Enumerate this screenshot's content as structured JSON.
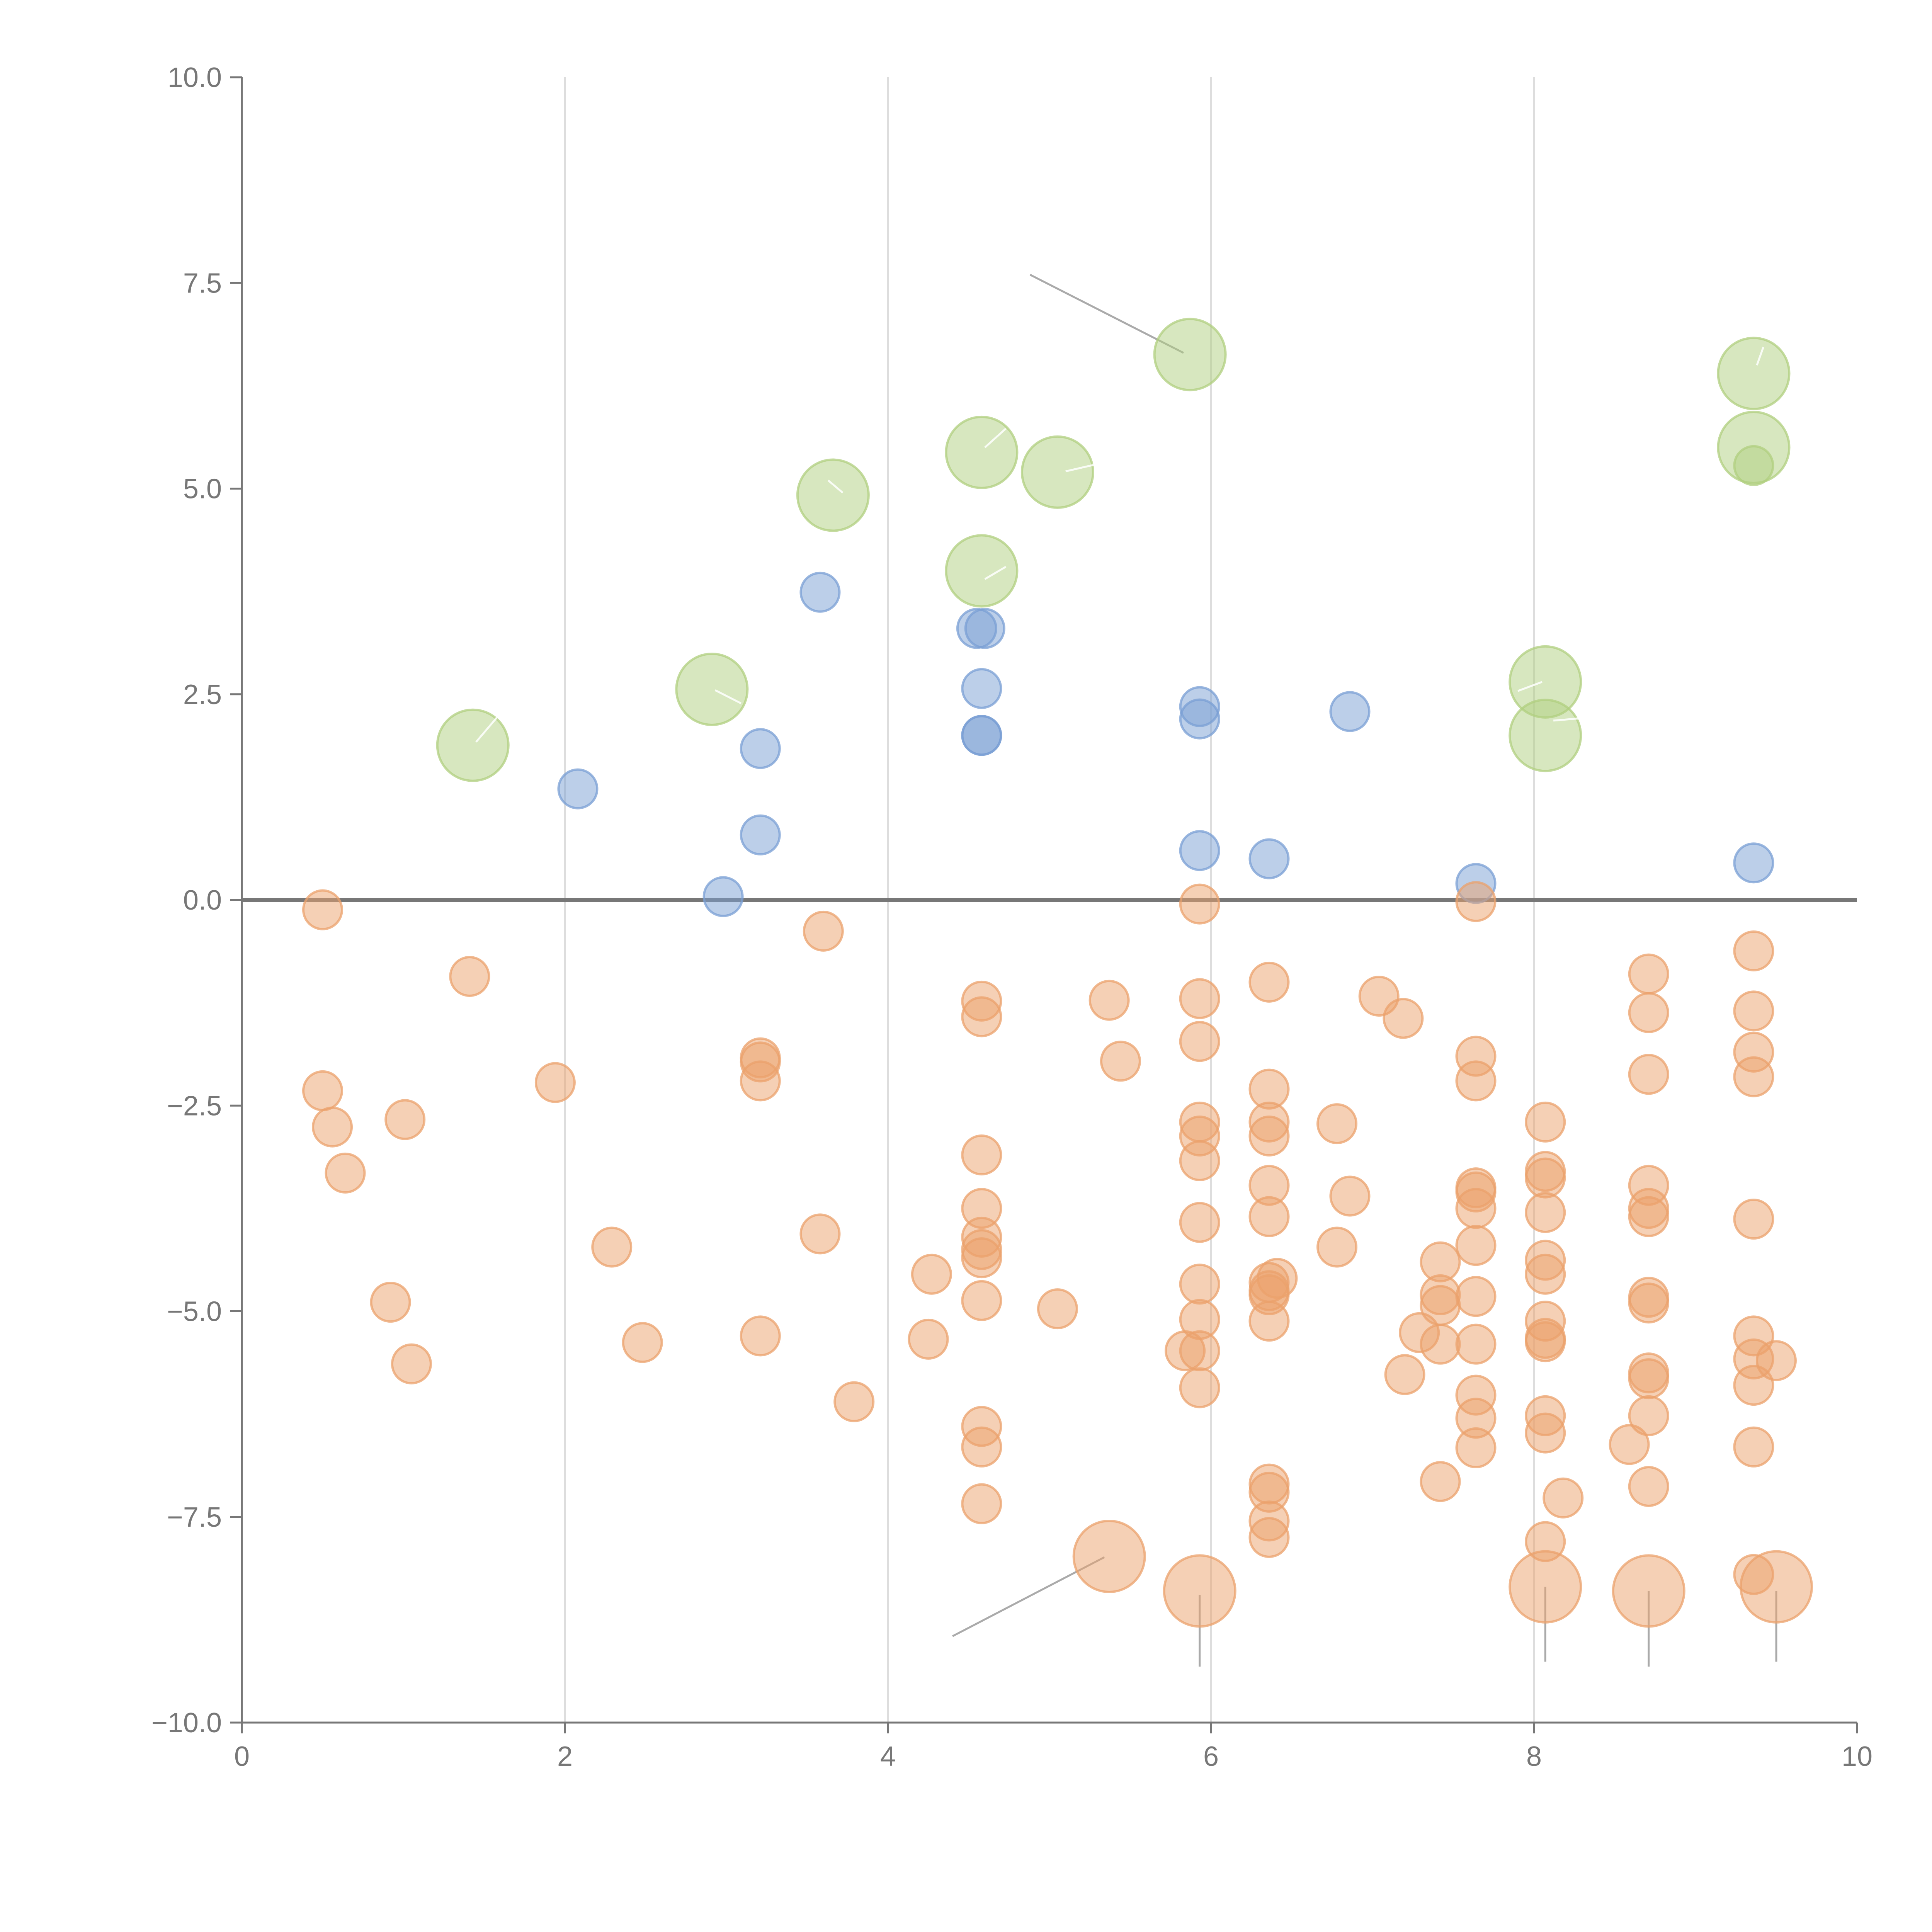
{
  "chart_data": {
    "type": "scatter",
    "title": "",
    "xlabel": "",
    "ylabel": "",
    "xlim": [
      0,
      10
    ],
    "ylim": [
      -10,
      10
    ],
    "x_ticks": [
      0,
      2,
      4,
      6,
      8,
      10
    ],
    "x_tick_labels": [
      "0",
      "2",
      "4",
      "6",
      "8",
      "10"
    ],
    "y_ticks": [
      10,
      7.5,
      5,
      2.5,
      0,
      -2.5,
      -5,
      -7.5,
      -10
    ],
    "y_tick_labels": [
      "10.0",
      "7.5",
      "5.0",
      "2.5",
      "0.0",
      "−2.5",
      "−5.0",
      "−7.5",
      "−10.0"
    ],
    "grid": "vertical",
    "baseline_y": 0,
    "colors": {
      "positive": "#7a9fd4",
      "negative": "#eba16c",
      "highlight": "#b0cf7f",
      "axis": "#777777",
      "grid": "#dddddd"
    },
    "series": [
      {
        "name": "positive",
        "color": "#7a9fd4",
        "size": "small",
        "points": [
          [
            2.08,
            1.35
          ],
          [
            3.21,
            1.84
          ],
          [
            3.21,
            0.79
          ],
          [
            2.98,
            0.04
          ],
          [
            3.58,
            3.74
          ],
          [
            4.55,
            3.3
          ],
          [
            4.6,
            3.3
          ],
          [
            4.58,
            2.57
          ],
          [
            4.58,
            2.0
          ],
          [
            4.58,
            2.0
          ],
          [
            5.93,
            2.35
          ],
          [
            5.93,
            2.2
          ],
          [
            5.93,
            0.6
          ],
          [
            6.36,
            0.5
          ],
          [
            6.86,
            2.29
          ],
          [
            7.64,
            0.2
          ],
          [
            9.36,
            0.45
          ]
        ]
      },
      {
        "name": "negative",
        "color": "#eba16c",
        "size": "small",
        "points": [
          [
            0.5,
            -0.12
          ],
          [
            0.5,
            -2.32
          ],
          [
            0.56,
            -2.76
          ],
          [
            0.64,
            -3.32
          ],
          [
            1.01,
            -2.67
          ],
          [
            0.92,
            -4.89
          ],
          [
            1.05,
            -5.64
          ],
          [
            1.41,
            -0.93
          ],
          [
            1.94,
            -2.22
          ],
          [
            2.29,
            -4.22
          ],
          [
            2.48,
            -5.38
          ],
          [
            3.21,
            -1.92
          ],
          [
            3.21,
            -1.97
          ],
          [
            3.21,
            -2.2
          ],
          [
            3.21,
            -5.3
          ],
          [
            3.6,
            -0.38
          ],
          [
            3.58,
            -4.06
          ],
          [
            3.79,
            -6.1
          ],
          [
            4.27,
            -4.55
          ],
          [
            4.25,
            -5.34
          ],
          [
            4.58,
            -1.23
          ],
          [
            4.58,
            -1.42
          ],
          [
            4.58,
            -3.1
          ],
          [
            4.58,
            -3.75
          ],
          [
            4.58,
            -4.1
          ],
          [
            4.58,
            -4.25
          ],
          [
            4.58,
            -4.35
          ],
          [
            4.58,
            -4.87
          ],
          [
            4.58,
            -6.4
          ],
          [
            4.58,
            -6.65
          ],
          [
            4.58,
            -7.34
          ],
          [
            5.05,
            -4.97
          ],
          [
            5.37,
            -1.22
          ],
          [
            5.44,
            -1.96
          ],
          [
            5.93,
            -0.05
          ],
          [
            5.93,
            -1.2
          ],
          [
            5.93,
            -1.72
          ],
          [
            5.93,
            -2.7
          ],
          [
            5.93,
            -2.87
          ],
          [
            5.93,
            -3.17
          ],
          [
            5.93,
            -3.92
          ],
          [
            5.93,
            -4.67
          ],
          [
            5.93,
            -5.1
          ],
          [
            5.93,
            -5.93
          ],
          [
            5.84,
            -5.48
          ],
          [
            5.93,
            -5.48
          ],
          [
            6.36,
            -1.0
          ],
          [
            6.36,
            -2.3
          ],
          [
            6.36,
            -2.7
          ],
          [
            6.36,
            -2.87
          ],
          [
            6.36,
            -3.47
          ],
          [
            6.36,
            -3.85
          ],
          [
            6.41,
            -4.6
          ],
          [
            6.36,
            -4.65
          ],
          [
            6.36,
            -4.75
          ],
          [
            6.36,
            -4.8
          ],
          [
            6.36,
            -5.12
          ],
          [
            6.36,
            -7.1
          ],
          [
            6.36,
            -7.2
          ],
          [
            6.36,
            -7.55
          ],
          [
            6.36,
            -7.75
          ],
          [
            6.78,
            -2.72
          ],
          [
            6.78,
            -4.22
          ],
          [
            6.86,
            -3.6
          ],
          [
            7.04,
            -1.17
          ],
          [
            7.19,
            -1.44
          ],
          [
            7.2,
            -5.77
          ],
          [
            7.29,
            -5.26
          ],
          [
            7.42,
            -4.4
          ],
          [
            7.42,
            -4.8
          ],
          [
            7.42,
            -4.93
          ],
          [
            7.42,
            -5.4
          ],
          [
            7.42,
            -7.07
          ],
          [
            7.64,
            -0.02
          ],
          [
            7.64,
            -1.9
          ],
          [
            7.64,
            -2.2
          ],
          [
            7.64,
            -3.5
          ],
          [
            7.64,
            -3.55
          ],
          [
            7.64,
            -3.75
          ],
          [
            7.64,
            -4.2
          ],
          [
            7.64,
            -4.82
          ],
          [
            7.64,
            -5.4
          ],
          [
            7.64,
            -6.02
          ],
          [
            7.64,
            -6.3
          ],
          [
            7.64,
            -6.66
          ],
          [
            8.07,
            -2.7
          ],
          [
            8.07,
            -3.3
          ],
          [
            8.07,
            -3.38
          ],
          [
            8.07,
            -3.8
          ],
          [
            8.07,
            -4.38
          ],
          [
            8.07,
            -4.55
          ],
          [
            8.07,
            -5.12
          ],
          [
            8.07,
            -5.33
          ],
          [
            8.07,
            -5.37
          ],
          [
            8.07,
            -6.27
          ],
          [
            8.07,
            -6.48
          ],
          [
            8.07,
            -7.8
          ],
          [
            8.18,
            -7.27
          ],
          [
            8.59,
            -6.62
          ],
          [
            8.71,
            -0.9
          ],
          [
            8.71,
            -1.37
          ],
          [
            8.71,
            -2.12
          ],
          [
            8.71,
            -3.47
          ],
          [
            8.71,
            -3.75
          ],
          [
            8.71,
            -3.85
          ],
          [
            8.71,
            -4.83
          ],
          [
            8.71,
            -4.9
          ],
          [
            8.71,
            -5.75
          ],
          [
            8.71,
            -5.82
          ],
          [
            8.71,
            -6.27
          ],
          [
            8.71,
            -7.13
          ],
          [
            9.36,
            -0.62
          ],
          [
            9.36,
            -1.35
          ],
          [
            9.36,
            -1.85
          ],
          [
            9.36,
            -2.15
          ],
          [
            9.36,
            -3.88
          ],
          [
            9.36,
            -5.3
          ],
          [
            9.36,
            -5.58
          ],
          [
            9.36,
            -5.9
          ],
          [
            9.36,
            -6.65
          ],
          [
            9.36,
            -8.2
          ],
          [
            9.5,
            -5.6
          ]
        ]
      },
      {
        "name": "negative-outliers",
        "color": "#eba16c",
        "size": "large",
        "points": [
          [
            5.37,
            -7.98
          ],
          [
            5.93,
            -8.4
          ],
          [
            8.07,
            -8.35
          ],
          [
            8.71,
            -8.4
          ],
          [
            9.5,
            -8.35
          ]
        ]
      },
      {
        "name": "highlight",
        "color": "#b0cf7f",
        "size": "large",
        "points": [
          [
            1.43,
            1.88
          ],
          [
            2.91,
            2.56
          ],
          [
            3.66,
            4.92
          ],
          [
            4.58,
            5.44
          ],
          [
            4.58,
            4.0
          ],
          [
            5.05,
            5.2
          ],
          [
            5.87,
            6.63
          ],
          [
            8.07,
            2.65
          ],
          [
            8.07,
            2.0
          ],
          [
            9.36,
            6.4
          ],
          [
            9.36,
            5.5
          ]
        ]
      },
      {
        "name": "highlight-inner",
        "color": "#b0cf7f",
        "size": "small",
        "points": [
          [
            9.36,
            5.28
          ]
        ]
      }
    ]
  }
}
